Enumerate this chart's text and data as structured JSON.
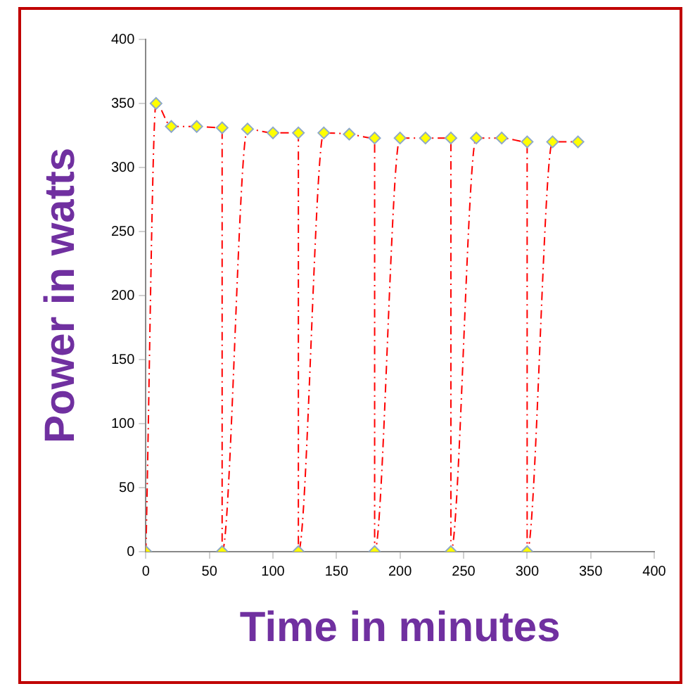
{
  "chart_data": {
    "type": "line",
    "xlabel": "Time in minutes",
    "ylabel": "Power in watts",
    "x": [
      0,
      8,
      20,
      40,
      60,
      60,
      80,
      100,
      120,
      120,
      140,
      160,
      180,
      180,
      200,
      220,
      240,
      240,
      260,
      280,
      300,
      300,
      320,
      340
    ],
    "series": [
      {
        "color": "#ff0000",
        "values": [
          0,
          350,
          332,
          332,
          331,
          0,
          330,
          327,
          327,
          0,
          327,
          326,
          323,
          0,
          323,
          323,
          323,
          0,
          323,
          323,
          320,
          0,
          320,
          320
        ]
      }
    ],
    "xlim": [
      0,
      400
    ],
    "xticks": [
      0,
      50,
      100,
      150,
      200,
      250,
      300,
      350,
      400
    ],
    "ylim": [
      0,
      400
    ],
    "yticks": [
      0,
      50,
      100,
      150,
      200,
      250,
      300,
      350,
      400
    ],
    "grid": false,
    "legend": false,
    "marker": "diamond",
    "line_style": "dashed"
  }
}
